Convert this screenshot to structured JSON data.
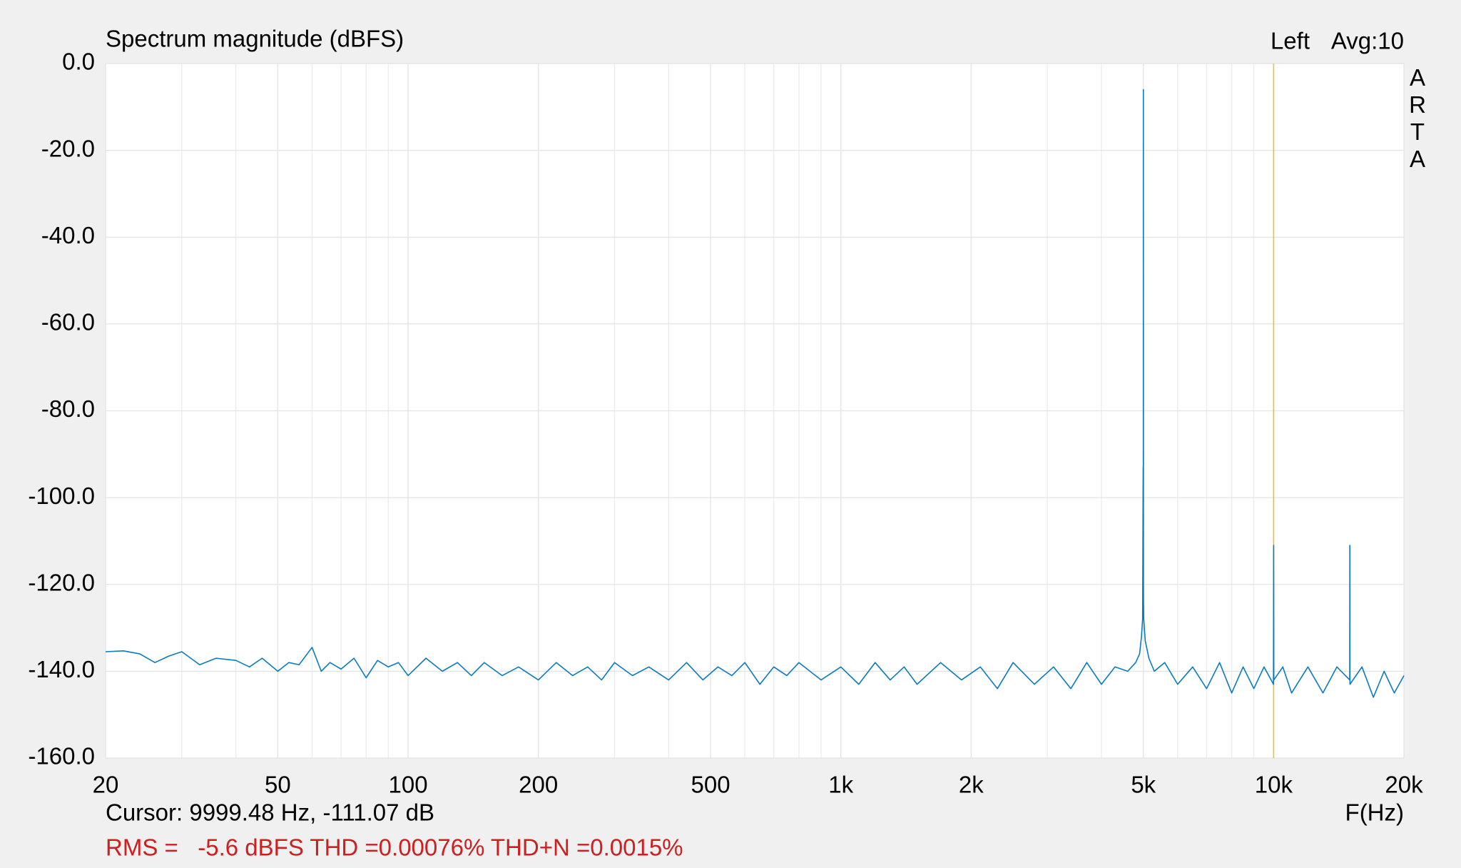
{
  "chart_data": {
    "type": "line",
    "title": "Spectrum magnitude (dBFS)",
    "channel": "Left",
    "averaging": "Avg:10",
    "watermark": "ARTA",
    "x_label": "F(Hz)",
    "x_scale": "log",
    "grid": true,
    "xlim": [
      20,
      20000
    ],
    "ylim": [
      -160,
      0
    ],
    "xticks": [
      20,
      50,
      100,
      200,
      500,
      {
        "value": 1000,
        "label": "1k"
      },
      {
        "value": 2000,
        "label": "2k"
      },
      {
        "value": 5000,
        "label": "5k"
      },
      {
        "value": 10000,
        "label": "10k"
      },
      {
        "value": 20000,
        "label": "20k"
      }
    ],
    "x_minor_grid": [
      30,
      40,
      60,
      70,
      80,
      90,
      300,
      400,
      600,
      700,
      800,
      900,
      3000,
      4000,
      6000,
      7000,
      8000,
      9000
    ],
    "yticks": [
      {
        "value": 0,
        "label": "0.0"
      },
      {
        "value": -20,
        "label": "-20.0"
      },
      {
        "value": -40,
        "label": "-40.0"
      },
      {
        "value": -60,
        "label": "-60.0"
      },
      {
        "value": -80,
        "label": "-80.0"
      },
      {
        "value": -100,
        "label": "-100.0"
      },
      {
        "value": -120,
        "label": "-120.0"
      },
      {
        "value": -140,
        "label": "-140.0"
      },
      {
        "value": -160,
        "label": "-160.0"
      }
    ],
    "cursor": {
      "x": 9999.48,
      "y": -111.07,
      "color": "#e6c23a",
      "label": "Cursor: 9999.48 Hz, -111.07 dB"
    },
    "stats": "RMS =   -5.6 dBFS THD =0.00076% THD+N =0.0015%",
    "series": [
      {
        "name": "Left",
        "color": "#0a7bbd",
        "x": [
          20,
          22,
          24,
          26,
          28,
          30,
          33,
          36,
          40,
          43,
          46,
          50,
          53,
          56,
          60,
          63,
          66,
          70,
          75,
          80,
          85,
          90,
          95,
          100,
          110,
          120,
          130,
          140,
          150,
          165,
          180,
          200,
          220,
          240,
          260,
          280,
          300,
          330,
          360,
          400,
          440,
          480,
          520,
          560,
          600,
          650,
          700,
          750,
          800,
          900,
          1000,
          1100,
          1200,
          1300,
          1400,
          1500,
          1700,
          1900,
          2100,
          2300,
          2500,
          2800,
          3100,
          3400,
          3700,
          4000,
          4300,
          4600,
          4800,
          4900,
          4950,
          4980,
          4995,
          4998,
          5000,
          5003,
          5010,
          5050,
          5150,
          5300,
          5600,
          6000,
          6500,
          7000,
          7500,
          8000,
          8500,
          9000,
          9500,
          9990,
          10000,
          10010,
          10500,
          11000,
          12000,
          13000,
          14000,
          14990,
          15000,
          15010,
          16000,
          17000,
          18000,
          19000,
          20000
        ],
        "values": [
          -135.5,
          -135.3,
          -136,
          -138,
          -136.5,
          -135.5,
          -138.5,
          -137,
          -137.5,
          -139,
          -137,
          -140,
          -138,
          -138.5,
          -134.5,
          -140,
          -138,
          -139.5,
          -137,
          -141.5,
          -137.5,
          -139,
          -138,
          -141,
          -137,
          -140,
          -138,
          -141,
          -138,
          -141,
          -139,
          -142,
          -138,
          -141,
          -139,
          -142,
          -138,
          -141,
          -139,
          -142,
          -138,
          -142,
          -139,
          -141,
          -138,
          -143,
          -139,
          -141,
          -138,
          -142,
          -139,
          -143,
          -138,
          -142,
          -139,
          -143,
          -138,
          -142,
          -139,
          -144,
          -138,
          -143,
          -139,
          -144,
          -138,
          -143,
          -139,
          -140,
          -138,
          -136,
          -132,
          -128,
          -93,
          -124,
          -6,
          -123,
          -128,
          -133,
          -137,
          -140,
          -138,
          -143,
          -139,
          -144,
          -138,
          -145,
          -139,
          -144,
          -139,
          -143,
          -111,
          -142,
          -139,
          -145,
          -139,
          -145,
          -139,
          -142,
          -111,
          -143,
          -139,
          -146,
          -140,
          -145,
          -141
        ]
      }
    ]
  }
}
